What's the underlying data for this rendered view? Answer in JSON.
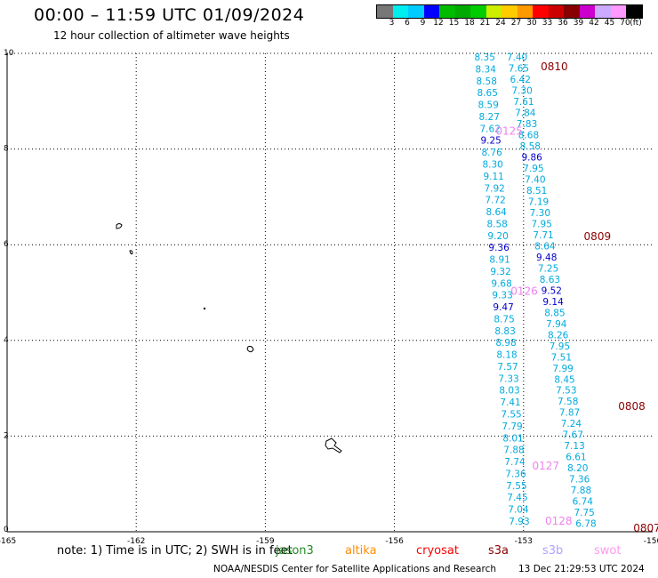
{
  "header": {
    "title": "00:00 – 11:59 UTC 01/09/2024",
    "subtitle": "12 hour collection of altimeter wave heights"
  },
  "colorbar": {
    "colors": [
      "#777777",
      "#00eeee",
      "#00ccff",
      "#0000ff",
      "#00bb00",
      "#00aa00",
      "#00cc00",
      "#ccee00",
      "#ffcc00",
      "#ff9900",
      "#ff0000",
      "#cc0000",
      "#880000",
      "#cc00cc",
      "#ccaaff",
      "#ff99ff",
      "#000000"
    ],
    "labels": [
      "3",
      "6",
      "9",
      "12",
      "15",
      "18",
      "21",
      "24",
      "27",
      "30",
      "33",
      "36",
      "39",
      "42",
      "45",
      "70",
      "(ft)"
    ]
  },
  "map": {
    "x_ticks": [
      "-165",
      "-162",
      "-159",
      "-156",
      "-153",
      "-150"
    ],
    "y_ticks": [
      "0",
      "2",
      "4",
      "6",
      "8",
      "10"
    ],
    "time_labels": [
      {
        "text": "0810",
        "lon": -152.6,
        "lat": 9.65,
        "color": "#8b0000"
      },
      {
        "text": "0125",
        "lon": -153.65,
        "lat": 8.3,
        "color": "#ee82ee"
      },
      {
        "text": "0809",
        "lon": -151.6,
        "lat": 6.1,
        "color": "#8b0000"
      },
      {
        "text": "0126",
        "lon": -153.3,
        "lat": 4.95,
        "color": "#ee82ee"
      },
      {
        "text": "0808",
        "lon": -150.8,
        "lat": 2.55,
        "color": "#8b0000"
      },
      {
        "text": "0127",
        "lon": -152.8,
        "lat": 1.3,
        "color": "#ee82ee"
      },
      {
        "text": "0128",
        "lon": -152.5,
        "lat": 0.15,
        "color": "#ee82ee"
      },
      {
        "text": "0807",
        "lon": -150.45,
        "lat": 0.0,
        "color": "#8b0000"
      }
    ],
    "track_a": [
      {
        "v": "8.35",
        "c": "#00aadd"
      },
      {
        "v": "8.34",
        "c": "#00aadd"
      },
      {
        "v": "8.58",
        "c": "#00aadd"
      },
      {
        "v": "8.65",
        "c": "#00aadd"
      },
      {
        "v": "8.59",
        "c": "#00aadd"
      },
      {
        "v": "8.27",
        "c": "#00aadd"
      },
      {
        "v": "7.62",
        "c": "#00aadd"
      },
      {
        "v": "9.25",
        "c": "#0000cc"
      },
      {
        "v": "8.76",
        "c": "#00aadd"
      },
      {
        "v": "8.30",
        "c": "#00aadd"
      },
      {
        "v": "9.11",
        "c": "#00aadd"
      },
      {
        "v": "7.92",
        "c": "#00aadd"
      },
      {
        "v": "7.72",
        "c": "#00aadd"
      },
      {
        "v": "8.64",
        "c": "#00aadd"
      },
      {
        "v": "8.58",
        "c": "#00aadd"
      },
      {
        "v": "9.20",
        "c": "#00aadd"
      },
      {
        "v": "9.36",
        "c": "#0000cc"
      },
      {
        "v": "8.91",
        "c": "#00aadd"
      },
      {
        "v": "9.32",
        "c": "#00aadd"
      },
      {
        "v": "9.68",
        "c": "#00aadd"
      },
      {
        "v": "9.33",
        "c": "#00aadd"
      },
      {
        "v": "9.47",
        "c": "#0000cc"
      },
      {
        "v": "8.75",
        "c": "#00aadd"
      },
      {
        "v": "8.83",
        "c": "#00aadd"
      },
      {
        "v": "8.98",
        "c": "#00aadd"
      },
      {
        "v": "8.18",
        "c": "#00aadd"
      },
      {
        "v": "7.57",
        "c": "#00aadd"
      },
      {
        "v": "7.33",
        "c": "#00aadd"
      },
      {
        "v": "8.03",
        "c": "#00aadd"
      },
      {
        "v": "7.41",
        "c": "#00aadd"
      },
      {
        "v": "7.55",
        "c": "#00aadd"
      },
      {
        "v": "7.79",
        "c": "#00aadd"
      },
      {
        "v": "8.01",
        "c": "#00aadd"
      },
      {
        "v": "7.88",
        "c": "#00aadd"
      },
      {
        "v": "7.74",
        "c": "#00aadd"
      },
      {
        "v": "7.36",
        "c": "#00aadd"
      },
      {
        "v": "7.55",
        "c": "#00aadd"
      },
      {
        "v": "7.45",
        "c": "#00aadd"
      },
      {
        "v": "7.04",
        "c": "#00aadd"
      },
      {
        "v": "7.93",
        "c": "#00aadd"
      }
    ],
    "track_b": [
      {
        "v": "7.40",
        "c": "#00aadd"
      },
      {
        "v": "7.65",
        "c": "#00aadd"
      },
      {
        "v": "6.42",
        "c": "#00aadd"
      },
      {
        "v": "7.30",
        "c": "#00aadd"
      },
      {
        "v": "7.61",
        "c": "#00aadd"
      },
      {
        "v": "7.84",
        "c": "#00aadd"
      },
      {
        "v": "7.83",
        "c": "#00aadd"
      },
      {
        "v": "8.68",
        "c": "#00aadd"
      },
      {
        "v": "8.58",
        "c": "#00aadd"
      },
      {
        "v": "9.86",
        "c": "#0000cc"
      },
      {
        "v": "7.95",
        "c": "#00aadd"
      },
      {
        "v": "7.40",
        "c": "#00aadd"
      },
      {
        "v": "8.51",
        "c": "#00aadd"
      },
      {
        "v": "7.19",
        "c": "#00aadd"
      },
      {
        "v": "7.30",
        "c": "#00aadd"
      },
      {
        "v": "7.95",
        "c": "#00aadd"
      },
      {
        "v": "7.71",
        "c": "#00aadd"
      },
      {
        "v": "8.64",
        "c": "#00aadd"
      },
      {
        "v": "9.48",
        "c": "#0000cc"
      },
      {
        "v": "7.25",
        "c": "#00aadd"
      },
      {
        "v": "8.63",
        "c": "#00aadd"
      },
      {
        "v": "9.52",
        "c": "#0000cc"
      },
      {
        "v": "9.14",
        "c": "#0000cc"
      },
      {
        "v": "8.85",
        "c": "#00aadd"
      },
      {
        "v": "7.94",
        "c": "#00aadd"
      },
      {
        "v": "8.26",
        "c": "#00aadd"
      },
      {
        "v": "7.95",
        "c": "#00aadd"
      },
      {
        "v": "7.51",
        "c": "#00aadd"
      },
      {
        "v": "7.99",
        "c": "#00aadd"
      },
      {
        "v": "8.45",
        "c": "#00aadd"
      },
      {
        "v": "7.53",
        "c": "#00aadd"
      },
      {
        "v": "7.58",
        "c": "#00aadd"
      },
      {
        "v": "7.87",
        "c": "#00aadd"
      },
      {
        "v": "7.24",
        "c": "#00aadd"
      },
      {
        "v": "7.67",
        "c": "#00aadd"
      },
      {
        "v": "7.13",
        "c": "#00aadd"
      },
      {
        "v": "6.61",
        "c": "#00aadd"
      },
      {
        "v": "8.20",
        "c": "#00aadd"
      },
      {
        "v": "7.36",
        "c": "#00aadd"
      },
      {
        "v": "7.88",
        "c": "#00aadd"
      },
      {
        "v": "6.74",
        "c": "#00aadd"
      },
      {
        "v": "7.75",
        "c": "#00aadd"
      },
      {
        "v": "6.78",
        "c": "#00aadd"
      }
    ]
  },
  "note": "note:  1) Time is in UTC; 2) SWH is in feet",
  "legend": [
    {
      "text": "jason3",
      "color": "#228b22"
    },
    {
      "text": "altika",
      "color": "#ff8c00"
    },
    {
      "text": "cryosat",
      "color": "#ff0000"
    },
    {
      "text": "s3a",
      "color": "#8b0000"
    },
    {
      "text": "s3b",
      "color": "#b0a0ff"
    },
    {
      "text": "swot",
      "color": "#ff99ee"
    }
  ],
  "footer": {
    "credit": "NOAA/NESDIS Center for Satellite Applications and Research",
    "timestamp": "13 Dec 21:29:53 UTC 2024"
  }
}
